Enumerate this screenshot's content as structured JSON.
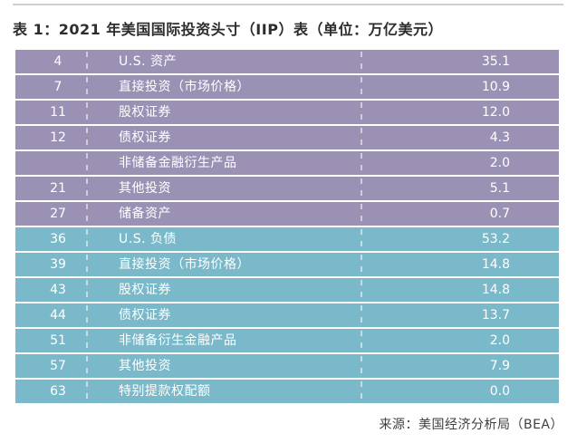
{
  "title": "表 1：2021 年美国国际投资头寸（IIP）表（单位：万亿美元）",
  "source_note": "来源：美国经济分析局（BEA）",
  "colors": {
    "assets": "#9b91b4",
    "liabilities": "#79b9c9",
    "divider": "rgba(255,255,255,0.55)",
    "row_text": "#ffffff",
    "title_text": "#2d2d2d",
    "source_text": "#3f3f3f",
    "top_rule": "#cfcfcf"
  },
  "chart_data": {
    "type": "table",
    "title": "表 1：2021 年美国国际投资头寸（IIP）表（单位：万亿美元）",
    "unit": "万亿美元",
    "source": "来源：美国经济分析局（BEA）",
    "sections": [
      {
        "name": "U.S. 资产",
        "color_key": "assets",
        "rows": [
          {
            "line": "4",
            "item": "U.S. 资产",
            "value": "35.1"
          },
          {
            "line": "7",
            "item": "直接投资（市场价格）",
            "value": "10.9"
          },
          {
            "line": "11",
            "item": "股权证券",
            "value": "12.0"
          },
          {
            "line": "12",
            "item": "债权证券",
            "value": "4.3"
          },
          {
            "line": "",
            "item": "非储备金融衍生产品",
            "value": "2.0"
          },
          {
            "line": "21",
            "item": "其他投资",
            "value": "5.1"
          },
          {
            "line": "27",
            "item": "储备资产",
            "value": "0.7"
          }
        ]
      },
      {
        "name": "U.S. 负债",
        "color_key": "liabilities",
        "rows": [
          {
            "line": "36",
            "item": "U.S. 负债",
            "value": "53.2"
          },
          {
            "line": "39",
            "item": "直接投资（市场价格）",
            "value": "14.8"
          },
          {
            "line": "43",
            "item": "股权证券",
            "value": "14.8"
          },
          {
            "line": "44",
            "item": "债权证券",
            "value": "13.7"
          },
          {
            "line": "51",
            "item": "非储备衍生金融产品",
            "value": "2.0"
          },
          {
            "line": "57",
            "item": "其他投资",
            "value": "7.9"
          },
          {
            "line": "63",
            "item": "特别提款权配额",
            "value": "0.0"
          }
        ]
      }
    ]
  }
}
